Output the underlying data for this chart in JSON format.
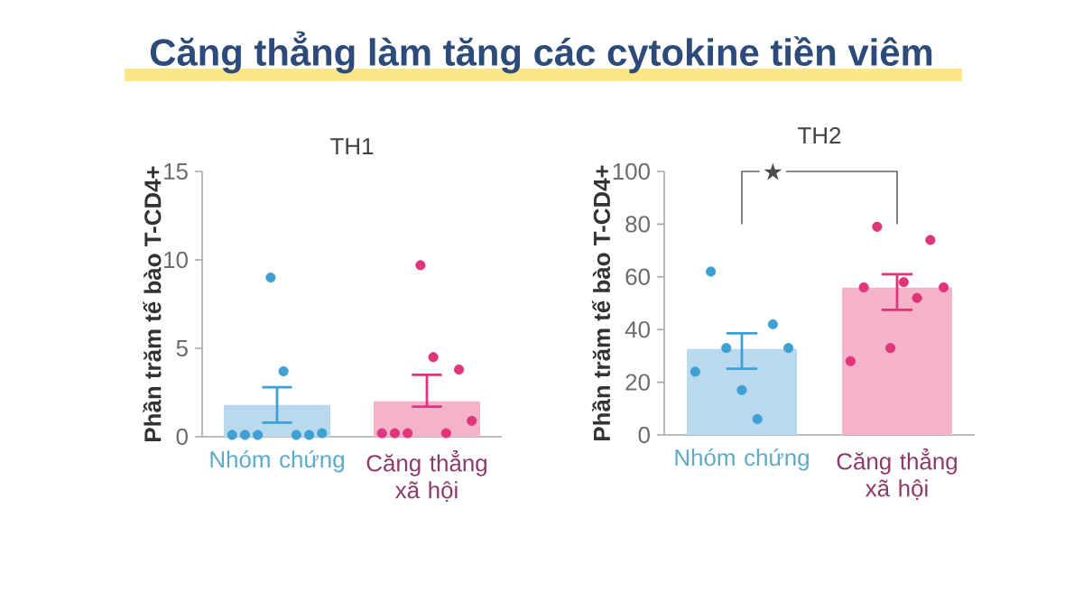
{
  "chart_data": [
    {
      "type": "bar",
      "title": "Căng thẳng làm tăng các cytokine tiền viêm",
      "subtitle": "TH1",
      "ylabel": "Phần trăm tế bào T-CD4+",
      "categories": [
        "Nhóm chứng",
        "Căng thẳng xã hội"
      ],
      "ylim": [
        0,
        15
      ],
      "yticks": [
        0,
        5,
        10,
        15
      ],
      "series": [
        {
          "colors": [
            "#b9d9ee",
            "#f5b3c9"
          ],
          "values": [
            1.8,
            2.0
          ],
          "errors": [
            [
              0.8,
              2.8
            ],
            [
              1.7,
              3.5
            ]
          ]
        },
        {
          "type": "scatter",
          "marker": "circle",
          "x": [
            "Nhóm chứng",
            "Nhóm chứng",
            "Nhóm chứng",
            "Nhóm chứng",
            "Nhóm chứng",
            "Nhóm chứng",
            "Nhóm chứng",
            "Nhóm chứng",
            "Căng thẳng xã hội",
            "Căng thẳng xã hội",
            "Căng thẳng xã hội",
            "Căng thẳng xã hội",
            "Căng thẳng xã hội",
            "Căng thẳng xã hội",
            "Căng thẳng xã hội",
            "Căng thẳng xã hội"
          ],
          "values": [
            0.1,
            0.1,
            0.1,
            9.0,
            3.7,
            0.1,
            0.1,
            0.2,
            0.2,
            0.2,
            0.2,
            9.7,
            4.5,
            0.2,
            3.8,
            0.9
          ],
          "colors": [
            "#3fa0d4",
            "#3fa0d4",
            "#3fa0d4",
            "#3fa0d4",
            "#3fa0d4",
            "#3fa0d4",
            "#3fa0d4",
            "#3fa0d4",
            "#e0357a",
            "#e0357a",
            "#e0357a",
            "#e0357a",
            "#e0357a",
            "#e0357a",
            "#e0357a",
            "#e0357a"
          ]
        }
      ]
    },
    {
      "type": "bar",
      "subtitle": "TH2",
      "ylabel": "Phần trăm tế bào T-CD4+",
      "categories": [
        "Nhóm chứng",
        "Căng thẳng xã hội"
      ],
      "ylim": [
        0,
        100
      ],
      "yticks": [
        0,
        20,
        40,
        60,
        80,
        100
      ],
      "annotations": [
        "★"
      ],
      "series": [
        {
          "colors": [
            "#b9d9ee",
            "#f5b3c9"
          ],
          "values": [
            32.6,
            55.9
          ],
          "errors": [
            [
              25.1,
              38.6
            ],
            [
              47.5,
              61.0
            ]
          ]
        },
        {
          "type": "scatter",
          "marker": "circle",
          "x": [
            "Nhóm chứng",
            "Nhóm chứng",
            "Nhóm chứng",
            "Nhóm chứng",
            "Nhóm chứng",
            "Nhóm chứng",
            "Nhóm chứng",
            "Căng thẳng xã hội",
            "Căng thẳng xã hội",
            "Căng thẳng xã hội",
            "Căng thẳng xã hội",
            "Căng thẳng xã hội",
            "Căng thẳng xã hội",
            "Căng thẳng xã hội",
            "Căng thẳng xã hội"
          ],
          "values": [
            24,
            62,
            33,
            17,
            6,
            42,
            33,
            28,
            56,
            79,
            33,
            58,
            52,
            74,
            56
          ],
          "colors": [
            "#3fa0d4",
            "#3fa0d4",
            "#3fa0d4",
            "#3fa0d4",
            "#3fa0d4",
            "#3fa0d4",
            "#3fa0d4",
            "#e0357a",
            "#e0357a",
            "#e0357a",
            "#e0357a",
            "#e0357a",
            "#e0357a",
            "#e0357a",
            "#e0357a"
          ]
        }
      ]
    }
  ]
}
